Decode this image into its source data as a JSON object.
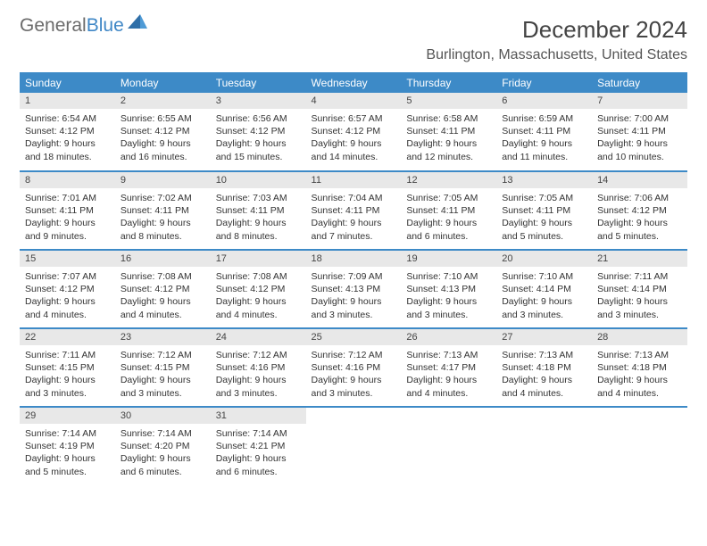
{
  "logo": {
    "text1": "General",
    "text2": "Blue"
  },
  "title": "December 2024",
  "location": "Burlington, Massachusetts, United States",
  "colors": {
    "header_bg": "#3d8ac7",
    "header_text": "#ffffff",
    "daynum_bg": "#e8e8e8",
    "border": "#3d8ac7",
    "logo_gray": "#6b6b6b",
    "logo_blue": "#3f87c6"
  },
  "weekdays": [
    "Sunday",
    "Monday",
    "Tuesday",
    "Wednesday",
    "Thursday",
    "Friday",
    "Saturday"
  ],
  "weeks": [
    [
      {
        "n": "1",
        "sr": "Sunrise: 6:54 AM",
        "ss": "Sunset: 4:12 PM",
        "d1": "Daylight: 9 hours",
        "d2": "and 18 minutes."
      },
      {
        "n": "2",
        "sr": "Sunrise: 6:55 AM",
        "ss": "Sunset: 4:12 PM",
        "d1": "Daylight: 9 hours",
        "d2": "and 16 minutes."
      },
      {
        "n": "3",
        "sr": "Sunrise: 6:56 AM",
        "ss": "Sunset: 4:12 PM",
        "d1": "Daylight: 9 hours",
        "d2": "and 15 minutes."
      },
      {
        "n": "4",
        "sr": "Sunrise: 6:57 AM",
        "ss": "Sunset: 4:12 PM",
        "d1": "Daylight: 9 hours",
        "d2": "and 14 minutes."
      },
      {
        "n": "5",
        "sr": "Sunrise: 6:58 AM",
        "ss": "Sunset: 4:11 PM",
        "d1": "Daylight: 9 hours",
        "d2": "and 12 minutes."
      },
      {
        "n": "6",
        "sr": "Sunrise: 6:59 AM",
        "ss": "Sunset: 4:11 PM",
        "d1": "Daylight: 9 hours",
        "d2": "and 11 minutes."
      },
      {
        "n": "7",
        "sr": "Sunrise: 7:00 AM",
        "ss": "Sunset: 4:11 PM",
        "d1": "Daylight: 9 hours",
        "d2": "and 10 minutes."
      }
    ],
    [
      {
        "n": "8",
        "sr": "Sunrise: 7:01 AM",
        "ss": "Sunset: 4:11 PM",
        "d1": "Daylight: 9 hours",
        "d2": "and 9 minutes."
      },
      {
        "n": "9",
        "sr": "Sunrise: 7:02 AM",
        "ss": "Sunset: 4:11 PM",
        "d1": "Daylight: 9 hours",
        "d2": "and 8 minutes."
      },
      {
        "n": "10",
        "sr": "Sunrise: 7:03 AM",
        "ss": "Sunset: 4:11 PM",
        "d1": "Daylight: 9 hours",
        "d2": "and 8 minutes."
      },
      {
        "n": "11",
        "sr": "Sunrise: 7:04 AM",
        "ss": "Sunset: 4:11 PM",
        "d1": "Daylight: 9 hours",
        "d2": "and 7 minutes."
      },
      {
        "n": "12",
        "sr": "Sunrise: 7:05 AM",
        "ss": "Sunset: 4:11 PM",
        "d1": "Daylight: 9 hours",
        "d2": "and 6 minutes."
      },
      {
        "n": "13",
        "sr": "Sunrise: 7:05 AM",
        "ss": "Sunset: 4:11 PM",
        "d1": "Daylight: 9 hours",
        "d2": "and 5 minutes."
      },
      {
        "n": "14",
        "sr": "Sunrise: 7:06 AM",
        "ss": "Sunset: 4:12 PM",
        "d1": "Daylight: 9 hours",
        "d2": "and 5 minutes."
      }
    ],
    [
      {
        "n": "15",
        "sr": "Sunrise: 7:07 AM",
        "ss": "Sunset: 4:12 PM",
        "d1": "Daylight: 9 hours",
        "d2": "and 4 minutes."
      },
      {
        "n": "16",
        "sr": "Sunrise: 7:08 AM",
        "ss": "Sunset: 4:12 PM",
        "d1": "Daylight: 9 hours",
        "d2": "and 4 minutes."
      },
      {
        "n": "17",
        "sr": "Sunrise: 7:08 AM",
        "ss": "Sunset: 4:12 PM",
        "d1": "Daylight: 9 hours",
        "d2": "and 4 minutes."
      },
      {
        "n": "18",
        "sr": "Sunrise: 7:09 AM",
        "ss": "Sunset: 4:13 PM",
        "d1": "Daylight: 9 hours",
        "d2": "and 3 minutes."
      },
      {
        "n": "19",
        "sr": "Sunrise: 7:10 AM",
        "ss": "Sunset: 4:13 PM",
        "d1": "Daylight: 9 hours",
        "d2": "and 3 minutes."
      },
      {
        "n": "20",
        "sr": "Sunrise: 7:10 AM",
        "ss": "Sunset: 4:14 PM",
        "d1": "Daylight: 9 hours",
        "d2": "and 3 minutes."
      },
      {
        "n": "21",
        "sr": "Sunrise: 7:11 AM",
        "ss": "Sunset: 4:14 PM",
        "d1": "Daylight: 9 hours",
        "d2": "and 3 minutes."
      }
    ],
    [
      {
        "n": "22",
        "sr": "Sunrise: 7:11 AM",
        "ss": "Sunset: 4:15 PM",
        "d1": "Daylight: 9 hours",
        "d2": "and 3 minutes."
      },
      {
        "n": "23",
        "sr": "Sunrise: 7:12 AM",
        "ss": "Sunset: 4:15 PM",
        "d1": "Daylight: 9 hours",
        "d2": "and 3 minutes."
      },
      {
        "n": "24",
        "sr": "Sunrise: 7:12 AM",
        "ss": "Sunset: 4:16 PM",
        "d1": "Daylight: 9 hours",
        "d2": "and 3 minutes."
      },
      {
        "n": "25",
        "sr": "Sunrise: 7:12 AM",
        "ss": "Sunset: 4:16 PM",
        "d1": "Daylight: 9 hours",
        "d2": "and 3 minutes."
      },
      {
        "n": "26",
        "sr": "Sunrise: 7:13 AM",
        "ss": "Sunset: 4:17 PM",
        "d1": "Daylight: 9 hours",
        "d2": "and 4 minutes."
      },
      {
        "n": "27",
        "sr": "Sunrise: 7:13 AM",
        "ss": "Sunset: 4:18 PM",
        "d1": "Daylight: 9 hours",
        "d2": "and 4 minutes."
      },
      {
        "n": "28",
        "sr": "Sunrise: 7:13 AM",
        "ss": "Sunset: 4:18 PM",
        "d1": "Daylight: 9 hours",
        "d2": "and 4 minutes."
      }
    ],
    [
      {
        "n": "29",
        "sr": "Sunrise: 7:14 AM",
        "ss": "Sunset: 4:19 PM",
        "d1": "Daylight: 9 hours",
        "d2": "and 5 minutes."
      },
      {
        "n": "30",
        "sr": "Sunrise: 7:14 AM",
        "ss": "Sunset: 4:20 PM",
        "d1": "Daylight: 9 hours",
        "d2": "and 6 minutes."
      },
      {
        "n": "31",
        "sr": "Sunrise: 7:14 AM",
        "ss": "Sunset: 4:21 PM",
        "d1": "Daylight: 9 hours",
        "d2": "and 6 minutes."
      },
      null,
      null,
      null,
      null
    ]
  ]
}
